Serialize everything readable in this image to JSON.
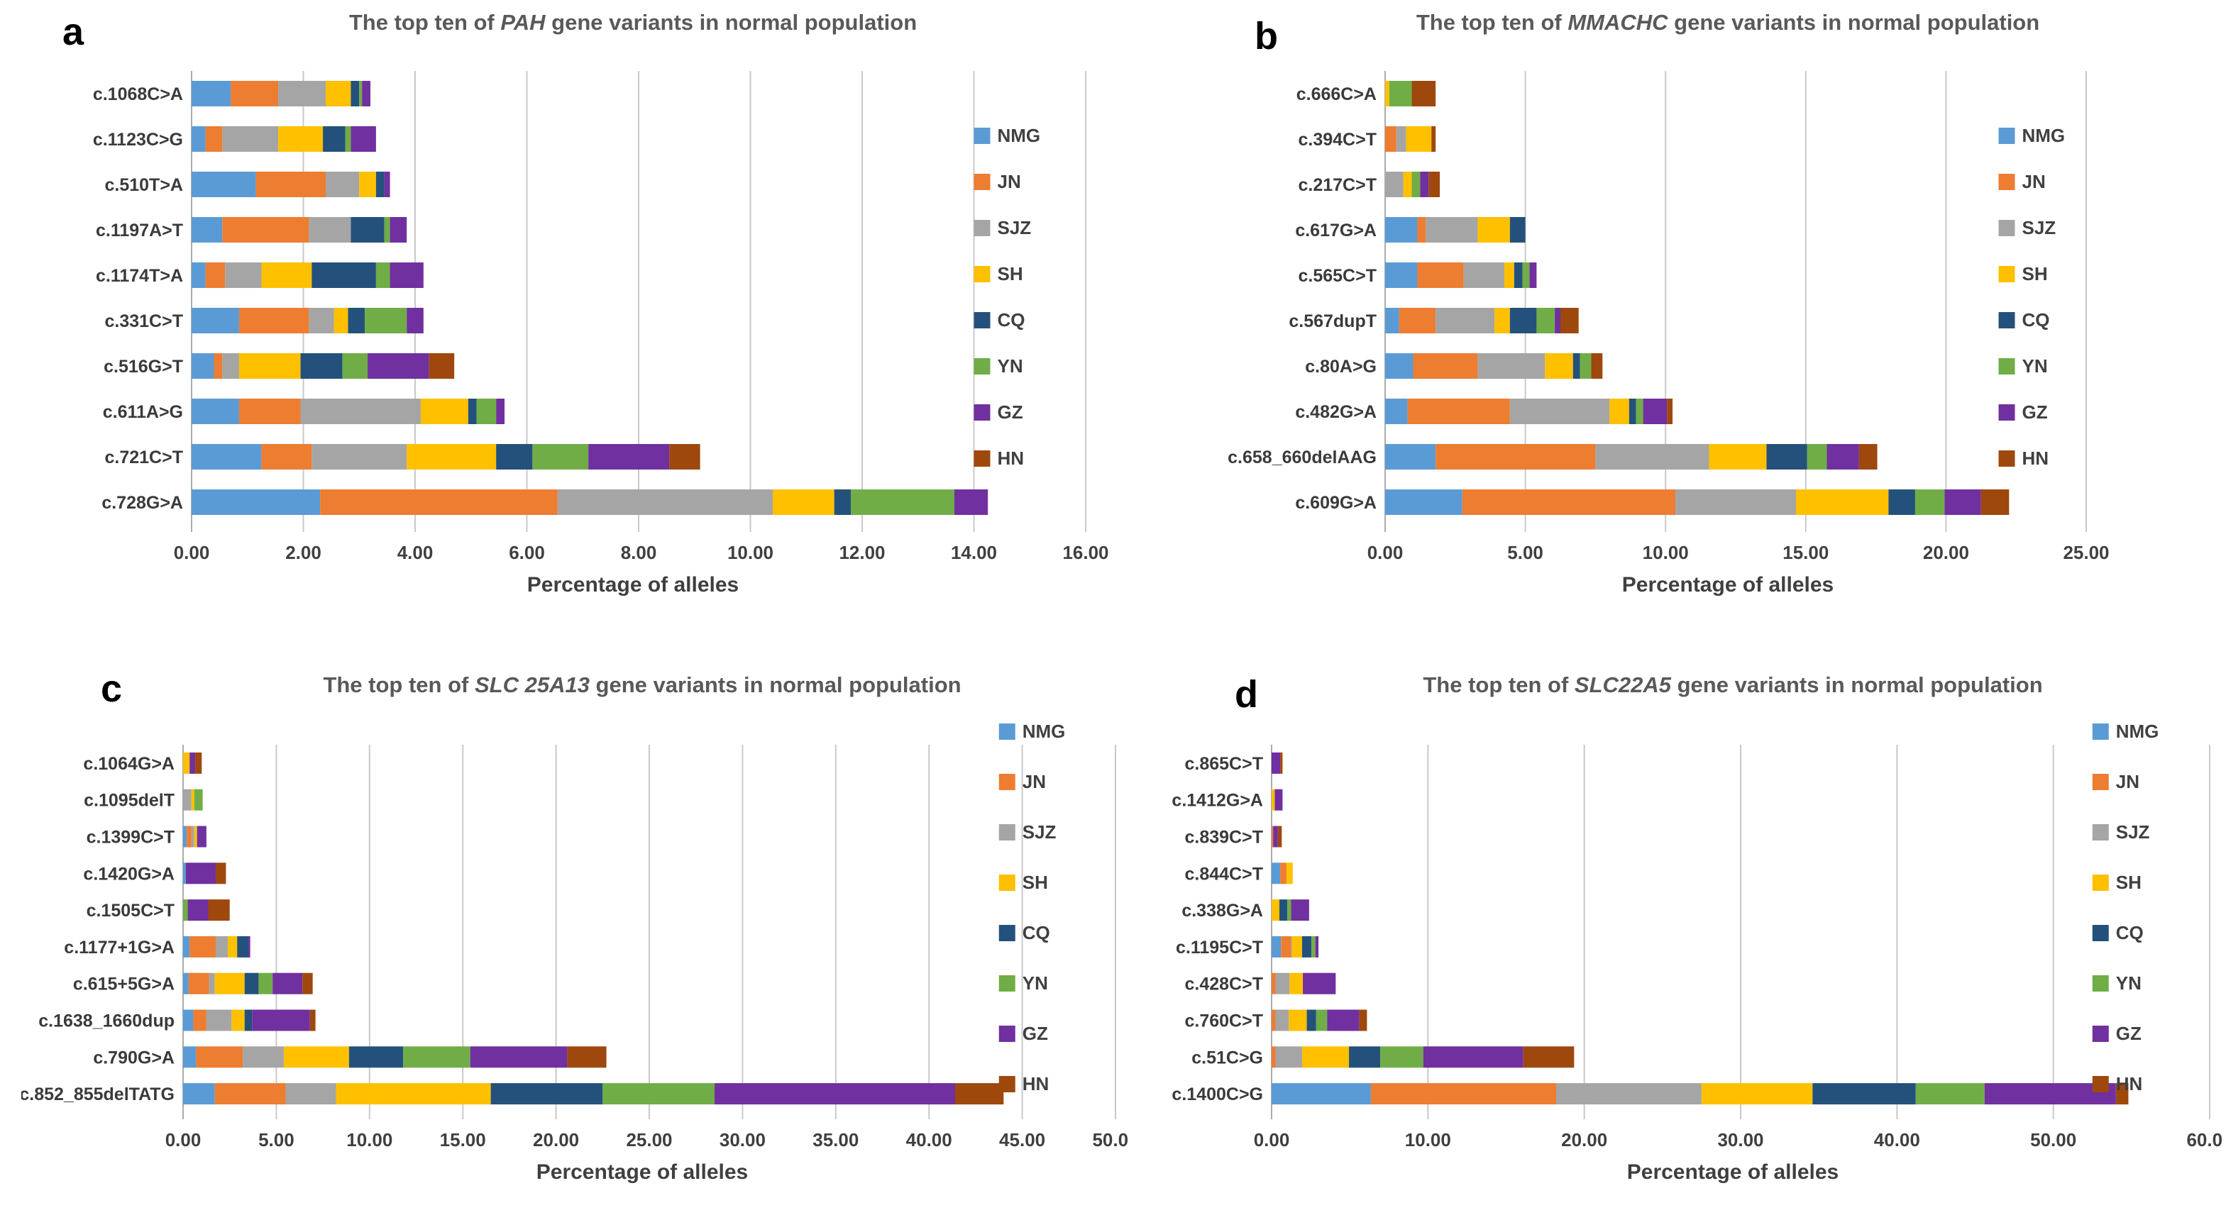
{
  "page": {
    "background": "#ffffff"
  },
  "axis": {
    "xlabel": "Percentage of alleles"
  },
  "legend_series": [
    "NMG",
    "JN",
    "SJZ",
    "SH",
    "CQ",
    "YN",
    "GZ",
    "HN"
  ],
  "series_colors": {
    "NMG": "#5B9BD5",
    "JN": "#ED7D31",
    "SJZ": "#A5A5A5",
    "SH": "#FFC000",
    "CQ": "#24517B",
    "YN": "#70AD47",
    "GZ": "#7030A0",
    "HN": "#9E480E"
  },
  "chart_data": [
    {
      "panel_letter": "a",
      "type": "bar",
      "orientation": "horizontal",
      "stacked": true,
      "grid": true,
      "legend_position": "right",
      "title": {
        "prefix": "The top ten of ",
        "gene": "PAH",
        "suffix": " gene variants in normal population"
      },
      "xlabel": "Percentage of alleles",
      "xlim": [
        0,
        16
      ],
      "xticks": [
        "0.00",
        "2.00",
        "4.00",
        "6.00",
        "8.00",
        "10.00",
        "12.00",
        "14.00",
        "16.00"
      ],
      "categories": [
        "c.1068C>A",
        "c.1123C>G",
        "c.510T>A",
        "c.1197A>T",
        "c.1174T>A",
        "c.331C>T",
        "c.516G>T",
        "c.611A>G",
        "c.721C>T",
        "c.728G>A"
      ],
      "series": [
        {
          "name": "NMG",
          "color": "#5B9BD5",
          "values": [
            0.7,
            0.25,
            1.15,
            0.55,
            0.25,
            0.85,
            0.4,
            0.85,
            1.25,
            2.3
          ]
        },
        {
          "name": "JN",
          "color": "#ED7D31",
          "values": [
            0.85,
            0.3,
            1.25,
            1.55,
            0.35,
            1.25,
            0.15,
            1.1,
            0.9,
            4.25
          ]
        },
        {
          "name": "SJZ",
          "color": "#A5A5A5",
          "values": [
            0.85,
            1.0,
            0.6,
            0.75,
            0.65,
            0.45,
            0.3,
            2.15,
            1.7,
            3.85
          ]
        },
        {
          "name": "SH",
          "color": "#FFC000",
          "values": [
            0.45,
            0.8,
            0.3,
            0.0,
            0.9,
            0.25,
            1.1,
            0.85,
            1.6,
            1.1
          ]
        },
        {
          "name": "CQ",
          "color": "#24517B",
          "values": [
            0.15,
            0.4,
            0.15,
            0.6,
            1.15,
            0.3,
            0.75,
            0.15,
            0.65,
            0.3
          ]
        },
        {
          "name": "YN",
          "color": "#70AD47",
          "values": [
            0.05,
            0.1,
            0.0,
            0.1,
            0.25,
            0.75,
            0.45,
            0.35,
            1.0,
            1.85
          ]
        },
        {
          "name": "GZ",
          "color": "#7030A0",
          "values": [
            0.15,
            0.45,
            0.1,
            0.3,
            0.6,
            0.3,
            1.1,
            0.15,
            1.45,
            0.6
          ]
        },
        {
          "name": "HN",
          "color": "#9E480E",
          "values": [
            0.0,
            0.0,
            0.0,
            0.0,
            0.0,
            0.0,
            0.45,
            0.0,
            0.55,
            0.0
          ]
        }
      ]
    },
    {
      "panel_letter": "b",
      "type": "bar",
      "orientation": "horizontal",
      "stacked": true,
      "grid": true,
      "legend_position": "right",
      "title": {
        "prefix": "The top ten of ",
        "gene": "MMACHC",
        "suffix": " gene variants in normal population"
      },
      "xlabel": "Percentage of alleles",
      "xlim": [
        0,
        25
      ],
      "xticks": [
        "0.00",
        "5.00",
        "10.00",
        "15.00",
        "20.00",
        "25.00"
      ],
      "categories": [
        "c.666C>A",
        "c.394C>T",
        "c.217C>T",
        "c.617G>A",
        "c.565C>T",
        "c.567dupT",
        "c.80A>G",
        "c.482G>A",
        "c.658_660delAAG",
        "c.609G>A"
      ],
      "series": [
        {
          "name": "NMG",
          "color": "#5B9BD5",
          "values": [
            0.0,
            0.0,
            0.0,
            1.15,
            1.15,
            0.5,
            1.0,
            0.8,
            1.8,
            2.75
          ]
        },
        {
          "name": "JN",
          "color": "#ED7D31",
          "values": [
            0.0,
            0.4,
            0.0,
            0.3,
            1.65,
            1.3,
            2.3,
            3.65,
            5.7,
            7.6
          ]
        },
        {
          "name": "SJZ",
          "color": "#A5A5A5",
          "values": [
            0.0,
            0.35,
            0.65,
            1.85,
            1.45,
            2.1,
            2.4,
            3.55,
            4.05,
            4.3
          ]
        },
        {
          "name": "SH",
          "color": "#FFC000",
          "values": [
            0.15,
            0.9,
            0.3,
            1.15,
            0.35,
            0.55,
            1.0,
            0.7,
            2.05,
            3.3
          ]
        },
        {
          "name": "CQ",
          "color": "#24517B",
          "values": [
            0.0,
            0.0,
            0.0,
            0.55,
            0.3,
            0.95,
            0.25,
            0.25,
            1.45,
            0.95
          ]
        },
        {
          "name": "YN",
          "color": "#70AD47",
          "values": [
            0.8,
            0.0,
            0.3,
            0.0,
            0.25,
            0.65,
            0.4,
            0.25,
            0.7,
            1.05
          ]
        },
        {
          "name": "GZ",
          "color": "#7030A0",
          "values": [
            0.0,
            0.0,
            0.3,
            0.0,
            0.25,
            0.2,
            0.0,
            0.85,
            1.15,
            1.3
          ]
        },
        {
          "name": "HN",
          "color": "#9E480E",
          "values": [
            0.85,
            0.15,
            0.4,
            0.0,
            0.0,
            0.65,
            0.4,
            0.2,
            0.65,
            1.0
          ]
        }
      ]
    },
    {
      "panel_letter": "c",
      "type": "bar",
      "orientation": "horizontal",
      "stacked": true,
      "grid": true,
      "legend_position": "right",
      "title": {
        "prefix": "The top ten of ",
        "gene": "SLC 25A13",
        "suffix": " gene variants in normal population"
      },
      "xlabel": "Percentage of alleles",
      "xlim": [
        0,
        50
      ],
      "xticks": [
        "0.00",
        "5.00",
        "10.00",
        "15.00",
        "20.00",
        "25.00",
        "30.00",
        "35.00",
        "40.00",
        "45.00",
        "50.00"
      ],
      "categories": [
        "c.1064G>A",
        "c.1095delT",
        "c.1399C>T",
        "c.1420G>A",
        "c.1505C>T",
        "c.1177+1G>A",
        "c.615+5G>A",
        "c.1638_1660dup",
        "c.790G>A",
        "c.852_855delTATG"
      ],
      "series": [
        {
          "name": "NMG",
          "color": "#5B9BD5",
          "values": [
            0.0,
            0.0,
            0.2,
            0.15,
            0.0,
            0.35,
            0.3,
            0.55,
            0.7,
            1.7
          ]
        },
        {
          "name": "JN",
          "color": "#ED7D31",
          "values": [
            0.0,
            0.0,
            0.25,
            0.0,
            0.0,
            1.4,
            1.1,
            0.7,
            2.5,
            3.8
          ]
        },
        {
          "name": "SJZ",
          "color": "#A5A5A5",
          "values": [
            0.0,
            0.45,
            0.15,
            0.0,
            0.0,
            0.65,
            0.3,
            1.35,
            2.2,
            2.7
          ]
        },
        {
          "name": "SH",
          "color": "#FFC000",
          "values": [
            0.35,
            0.15,
            0.15,
            0.0,
            0.0,
            0.5,
            1.6,
            0.7,
            3.5,
            8.3
          ]
        },
        {
          "name": "CQ",
          "color": "#24517B",
          "values": [
            0.0,
            0.0,
            0.0,
            0.0,
            0.0,
            0.6,
            0.75,
            0.4,
            2.9,
            6.0
          ]
        },
        {
          "name": "YN",
          "color": "#70AD47",
          "values": [
            0.0,
            0.45,
            0.0,
            0.0,
            0.25,
            0.0,
            0.75,
            0.0,
            3.6,
            6.0
          ]
        },
        {
          "name": "GZ",
          "color": "#7030A0",
          "values": [
            0.3,
            0.0,
            0.5,
            1.6,
            1.1,
            0.1,
            1.6,
            3.1,
            5.2,
            12.9
          ]
        },
        {
          "name": "HN",
          "color": "#9E480E",
          "values": [
            0.35,
            0.0,
            0.0,
            0.55,
            1.15,
            0.0,
            0.55,
            0.3,
            2.1,
            2.6
          ]
        }
      ]
    },
    {
      "panel_letter": "d",
      "type": "bar",
      "orientation": "horizontal",
      "stacked": true,
      "grid": true,
      "legend_position": "right",
      "title": {
        "prefix": "The top ten of ",
        "gene": "SLC22A5",
        "suffix": " gene variants in normal population"
      },
      "xlabel": "Percentage of alleles",
      "xlim": [
        0,
        60
      ],
      "xticks": [
        "0.00",
        "10.00",
        "20.00",
        "30.00",
        "40.00",
        "50.00",
        "60.00"
      ],
      "categories": [
        "c.865C>T",
        "c.1412G>A",
        "c.839C>T",
        "c.844C>T",
        "c.338G>A",
        "c.1195C>T",
        "c.428C>T",
        "c.760C>T",
        "c.51C>G",
        "c.1400C>G"
      ],
      "series": [
        {
          "name": "NMG",
          "color": "#5B9BD5",
          "values": [
            0.0,
            0.0,
            0.0,
            0.55,
            0.0,
            0.6,
            0.0,
            0.0,
            0.0,
            6.35
          ]
        },
        {
          "name": "JN",
          "color": "#ED7D31",
          "values": [
            0.0,
            0.0,
            0.1,
            0.4,
            0.0,
            0.65,
            0.25,
            0.25,
            0.25,
            11.85
          ]
        },
        {
          "name": "SJZ",
          "color": "#A5A5A5",
          "values": [
            0.0,
            0.0,
            0.0,
            0.0,
            0.0,
            0.05,
            0.9,
            0.85,
            1.7,
            9.3
          ]
        },
        {
          "name": "SH",
          "color": "#FFC000",
          "values": [
            0.0,
            0.2,
            0.0,
            0.4,
            0.5,
            0.65,
            0.85,
            1.15,
            3.0,
            7.1
          ]
        },
        {
          "name": "CQ",
          "color": "#24517B",
          "values": [
            0.0,
            0.0,
            0.0,
            0.0,
            0.5,
            0.6,
            0.0,
            0.6,
            2.0,
            6.6
          ]
        },
        {
          "name": "YN",
          "color": "#70AD47",
          "values": [
            0.0,
            0.0,
            0.0,
            0.0,
            0.25,
            0.25,
            0.0,
            0.7,
            2.75,
            4.4
          ]
        },
        {
          "name": "GZ",
          "color": "#7030A0",
          "values": [
            0.55,
            0.5,
            0.3,
            0.0,
            1.15,
            0.2,
            2.1,
            2.05,
            6.4,
            8.4
          ]
        },
        {
          "name": "HN",
          "color": "#9E480E",
          "values": [
            0.15,
            0.0,
            0.25,
            0.0,
            0.0,
            0.0,
            0.0,
            0.5,
            3.25,
            0.8
          ]
        }
      ]
    }
  ]
}
